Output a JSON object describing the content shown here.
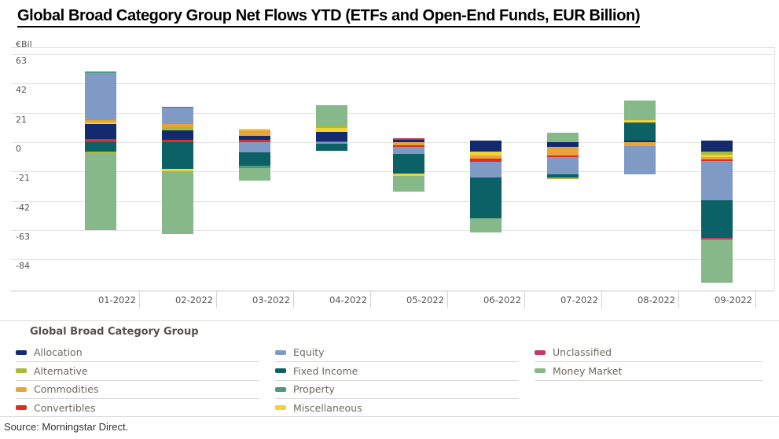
{
  "title": "Global Broad Category Group Net Flows YTD (ETFs and Open-End Funds, EUR Billion)",
  "source": "Source: Morningstar Direct.",
  "legend": {
    "header": "Global Broad Category Group",
    "columns": [
      [
        "Allocation",
        "Alternative",
        "Commodities",
        "Convertibles"
      ],
      [
        "Equity",
        "Fixed Income",
        "Property",
        "Miscellaneous"
      ],
      [
        "Unclassified",
        "Money Market"
      ]
    ]
  },
  "colors": {
    "Allocation": "#132a6e",
    "Alternative": "#a9b93c",
    "Commodities": "#e8a43b",
    "Convertibles": "#d62f27",
    "Equity": "#7f9ac4",
    "Fixed Income": "#0b6165",
    "Property": "#4a9b7f",
    "Miscellaneous": "#f1d337",
    "Unclassified": "#c43a67",
    "Money Market": "#86b88a"
  },
  "chart_data": {
    "type": "bar",
    "stacked": true,
    "title": "Global Broad Category Group Net Flows YTD (ETFs and Open-End Funds, EUR Billion)",
    "unit_label": "€Bil",
    "ylabel": "€Bil",
    "xlabel": "",
    "y_ticks": [
      63,
      42,
      21,
      0,
      -21,
      -42,
      -63,
      -84
    ],
    "ylim": [
      -105,
      68
    ],
    "grid": true,
    "legend_position": "bottom",
    "categories": [
      "01-2022",
      "02-2022",
      "03-2022",
      "04-2022",
      "05-2022",
      "06-2022",
      "07-2022",
      "08-2022",
      "09-2022"
    ],
    "bars": [
      {
        "month": "01-2022",
        "segments": [
          [
            "Property",
            0.8
          ],
          [
            "Equity",
            34.3
          ],
          [
            "Commodities",
            1.4
          ],
          [
            "Miscellaneous",
            1.4
          ],
          [
            "Allocation",
            10.7
          ],
          [
            "Convertibles",
            2.0
          ],
          [
            "Fixed Income",
            -7.0
          ],
          [
            "Alternative",
            -1.4
          ],
          [
            "Money Market",
            -54.6
          ]
        ]
      },
      {
        "month": "02-2022",
        "segments": [
          [
            "Unclassified",
            0.8
          ],
          [
            "Equity",
            11.8
          ],
          [
            "Commodities",
            2.3
          ],
          [
            "Alternative",
            2.3
          ],
          [
            "Allocation",
            6.5
          ],
          [
            "Convertibles",
            1.7
          ],
          [
            "Fixed Income",
            -19.1
          ],
          [
            "Miscellaneous",
            -1.7
          ],
          [
            "Money Market",
            -45.0
          ]
        ]
      },
      {
        "month": "03-2022",
        "segments": [
          [
            "Miscellaneous",
            1.1
          ],
          [
            "Commodities",
            4.2
          ],
          [
            "Allocation",
            2.8
          ],
          [
            "Convertibles",
            1.7
          ],
          [
            "Equity",
            -7.3
          ],
          [
            "Fixed Income",
            -9.6
          ],
          [
            "Property",
            -1.7
          ],
          [
            "Money Market",
            -9.0
          ]
        ]
      },
      {
        "month": "04-2022",
        "segments": [
          [
            "Money Market",
            14.6
          ],
          [
            "Alternative",
            1.7
          ],
          [
            "Miscellaneous",
            2.8
          ],
          [
            "Allocation",
            6.8
          ],
          [
            "Unclassified",
            0.6
          ],
          [
            "Equity",
            -1.1
          ],
          [
            "Fixed Income",
            -5.1
          ]
        ]
      },
      {
        "month": "05-2022",
        "segments": [
          [
            "Unclassified",
            1.1
          ],
          [
            "Allocation",
            1.7
          ],
          [
            "Commodities",
            -2.3
          ],
          [
            "Convertibles",
            -1.1
          ],
          [
            "Equity",
            -5.1
          ],
          [
            "Fixed Income",
            -14.1
          ],
          [
            "Miscellaneous",
            -1.7
          ],
          [
            "Money Market",
            -11.3
          ]
        ]
      },
      {
        "month": "06-2022",
        "segments": [
          [
            "Allocation",
            1.1
          ],
          [
            "Allocation",
            -7.0
          ],
          [
            "Miscellaneous",
            -2.3
          ],
          [
            "Commodities",
            -2.3
          ],
          [
            "Convertibles",
            -2.3
          ],
          [
            "Equity",
            -11.3
          ],
          [
            "Fixed Income",
            -29.3
          ],
          [
            "Money Market",
            -10.1
          ]
        ]
      },
      {
        "month": "07-2022",
        "segments": [
          [
            "Money Market",
            6.8
          ],
          [
            "Allocation",
            -3.4
          ],
          [
            "Commodities",
            -6.2
          ],
          [
            "Convertibles",
            -1.1
          ],
          [
            "Equity",
            -12.4
          ],
          [
            "Fixed Income",
            -2.3
          ],
          [
            "Alternative",
            -1.1
          ]
        ]
      },
      {
        "month": "08-2022",
        "segments": [
          [
            "Money Market",
            14.1
          ],
          [
            "Miscellaneous",
            1.7
          ],
          [
            "Fixed Income",
            12.9
          ],
          [
            "Allocation",
            1.1
          ],
          [
            "Commodities",
            -2.8
          ],
          [
            "Equity",
            -20.3
          ]
        ]
      },
      {
        "month": "09-2022",
        "segments": [
          [
            "Allocation",
            1.1
          ],
          [
            "Allocation",
            -7.0
          ],
          [
            "Alternative",
            -2.0
          ],
          [
            "Miscellaneous",
            -1.7
          ],
          [
            "Commodities",
            -1.7
          ],
          [
            "Convertibles",
            -1.1
          ],
          [
            "Equity",
            -28.2
          ],
          [
            "Fixed Income",
            -27.0
          ],
          [
            "Unclassified",
            -1.1
          ],
          [
            "Money Market",
            -31.0
          ]
        ]
      }
    ]
  }
}
